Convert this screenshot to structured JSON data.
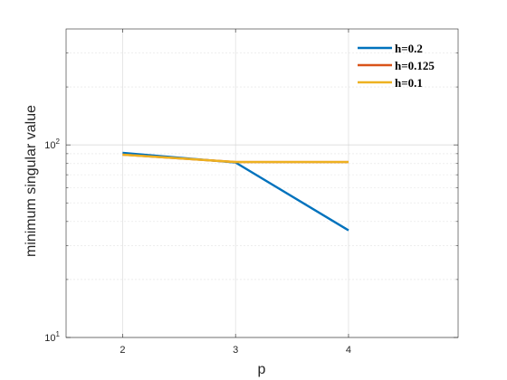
{
  "chart_data": {
    "type": "line",
    "title": "",
    "xlabel": "p",
    "ylabel": "minimum singular value",
    "x_scale": "linear",
    "y_scale": "log",
    "xlim": [
      1.5,
      4.97
    ],
    "ylim": [
      10,
      400
    ],
    "x_ticks": [
      2,
      3,
      4
    ],
    "x_tick_labels": [
      "2",
      "3",
      "4"
    ],
    "y_major_ticks": [
      10,
      100
    ],
    "y_tick_labels": [
      {
        "base": "10",
        "exp": "1"
      },
      {
        "base": "10",
        "exp": "2"
      }
    ],
    "grid": true,
    "minor_grid": true,
    "legend_position": "top-right",
    "series": [
      {
        "name": "h=0.2",
        "color": "#0072BD",
        "x": [
          2,
          3,
          4
        ],
        "y": [
          91,
          81,
          36
        ]
      },
      {
        "name": "h=0.125",
        "color": "#D95319",
        "x": [
          2,
          3,
          4
        ],
        "y": [
          89,
          81.5,
          81.5
        ]
      },
      {
        "name": "h=0.1",
        "color": "#EDB120",
        "x": [
          2,
          3,
          4
        ],
        "y": [
          89,
          81.5,
          81.5
        ]
      }
    ]
  }
}
